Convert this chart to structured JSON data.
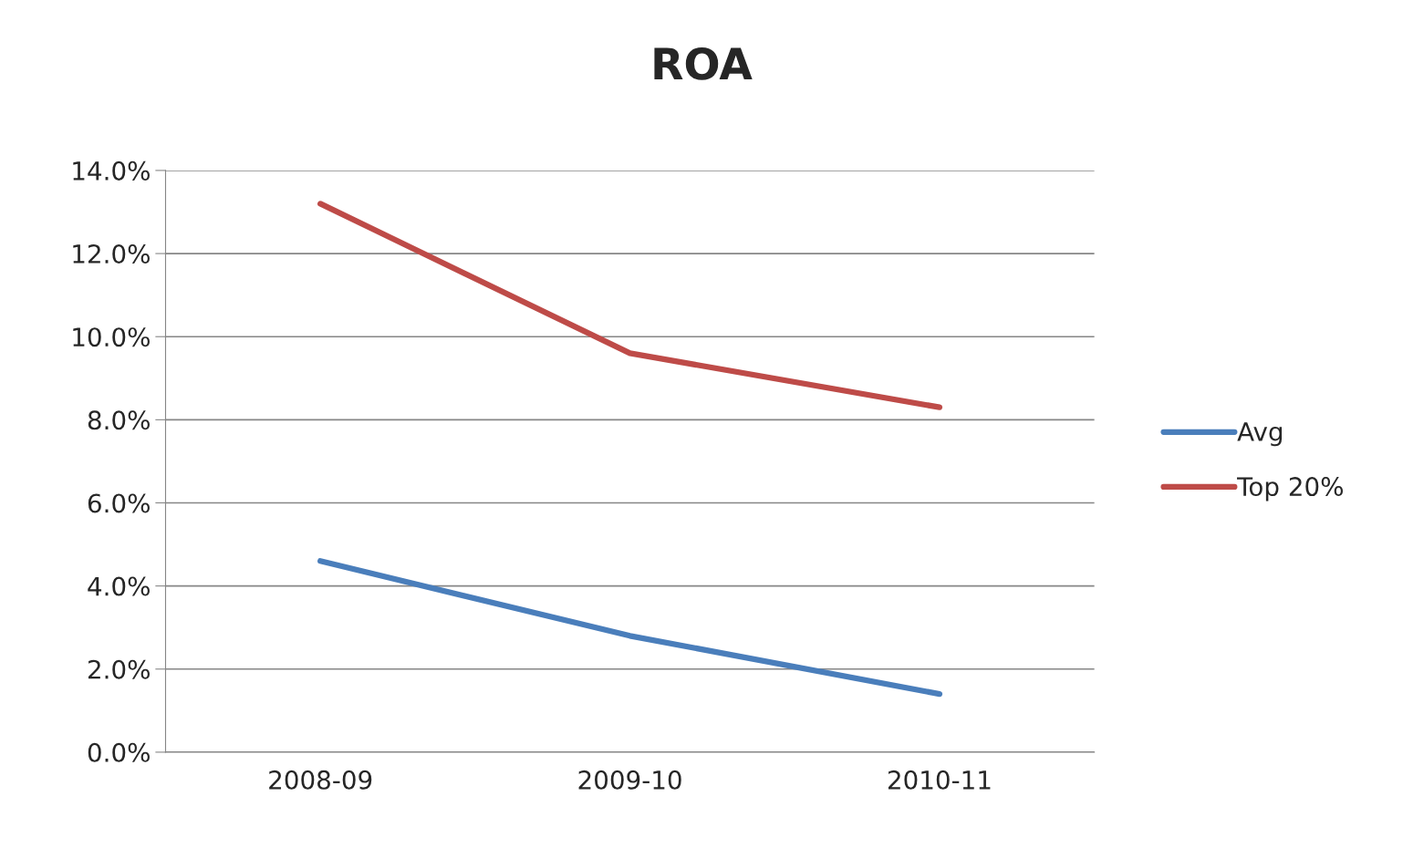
{
  "chart_data": {
    "type": "line",
    "title": "ROA",
    "categories": [
      "2008-09",
      "2009-10",
      "2010-11"
    ],
    "series": [
      {
        "name": "Avg",
        "color": "#4a7ebb",
        "values": [
          4.6,
          2.8,
          1.4
        ]
      },
      {
        "name": "Top 20%",
        "color": "#be4b48",
        "values": [
          13.2,
          9.6,
          8.3
        ]
      }
    ],
    "ylim": [
      0,
      14
    ],
    "yticks": [
      {
        "value": 0,
        "label": "0.0%"
      },
      {
        "value": 2,
        "label": "2.0%"
      },
      {
        "value": 4,
        "label": "4.0%"
      },
      {
        "value": 6,
        "label": "6.0%"
      },
      {
        "value": 8,
        "label": "8.0%"
      },
      {
        "value": 10,
        "label": "10.0%"
      },
      {
        "value": 12,
        "label": "12.0%"
      },
      {
        "value": 14,
        "label": "14.0%"
      }
    ],
    "grid": "y",
    "legend": "right",
    "marker": "none",
    "line_style": "solid"
  }
}
